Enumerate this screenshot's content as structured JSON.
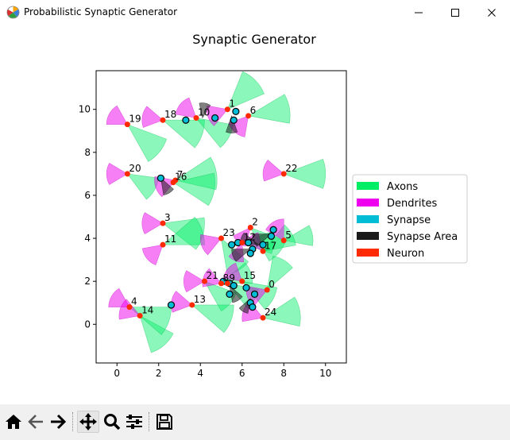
{
  "window": {
    "title": "Probabilistic Synaptic Generator",
    "icon": "matplotlib-icon",
    "controls": [
      "minimize-icon",
      "maximize-icon",
      "close-icon"
    ]
  },
  "toolbar": {
    "buttons": [
      {
        "name": "home",
        "icon": "home-icon"
      },
      {
        "name": "back",
        "icon": "back-arrow-icon"
      },
      {
        "name": "forward",
        "icon": "forward-arrow-icon"
      },
      {
        "name": "pan",
        "icon": "move-icon",
        "active": true
      },
      {
        "name": "zoom",
        "icon": "zoom-icon"
      },
      {
        "name": "configure",
        "icon": "sliders-icon"
      },
      {
        "name": "save",
        "icon": "save-icon"
      }
    ]
  },
  "chart_data": {
    "type": "scatter",
    "title": "Synaptic Generator",
    "xlim": [
      -1,
      11
    ],
    "ylim": [
      -1.8,
      11.8
    ],
    "xticks": [
      0,
      2,
      4,
      6,
      8,
      10
    ],
    "yticks": [
      0,
      2,
      4,
      6,
      8,
      10
    ],
    "grid": false,
    "legend_position": "right",
    "legend": [
      {
        "label": "Axons",
        "color": "#00ee66"
      },
      {
        "label": "Dendrites",
        "color": "#ee00ee"
      },
      {
        "label": "Synapse",
        "color": "#00bcd4"
      },
      {
        "label": "Synapse Area",
        "color": "#1a1a1a"
      },
      {
        "label": "Neuron",
        "color": "#ff2a00"
      }
    ],
    "colors": {
      "axon": "#00ee66",
      "dendrite": "#ee00ee",
      "synapse": "#00bcd4",
      "synapse_area": "#1a1a1a",
      "neuron": "#ff2a00"
    },
    "neurons": [
      {
        "id": "0",
        "x": 7.2,
        "y": 1.6
      },
      {
        "id": "1",
        "x": 5.3,
        "y": 10.0
      },
      {
        "id": "2",
        "x": 6.4,
        "y": 4.5
      },
      {
        "id": "3",
        "x": 2.2,
        "y": 4.7
      },
      {
        "id": "4",
        "x": 0.6,
        "y": 0.8
      },
      {
        "id": "5",
        "x": 8.0,
        "y": 3.9
      },
      {
        "id": "6",
        "x": 6.3,
        "y": 9.7
      },
      {
        "id": "7",
        "x": 2.8,
        "y": 6.7
      },
      {
        "id": "8",
        "x": 5.0,
        "y": 1.9
      },
      {
        "id": "9",
        "x": 5.3,
        "y": 1.9
      },
      {
        "id": "10",
        "x": 3.8,
        "y": 9.6
      },
      {
        "id": "11",
        "x": 2.2,
        "y": 3.7
      },
      {
        "id": "12",
        "x": 6.0,
        "y": 3.8
      },
      {
        "id": "13",
        "x": 3.6,
        "y": 0.9
      },
      {
        "id": "14",
        "x": 1.1,
        "y": 0.4
      },
      {
        "id": "15",
        "x": 6.0,
        "y": 2.0
      },
      {
        "id": "16",
        "x": 2.7,
        "y": 6.6
      },
      {
        "id": "17",
        "x": 7.0,
        "y": 3.4
      },
      {
        "id": "18",
        "x": 2.2,
        "y": 9.5
      },
      {
        "id": "19",
        "x": 0.5,
        "y": 9.3
      },
      {
        "id": "20",
        "x": 0.5,
        "y": 7.0
      },
      {
        "id": "21",
        "x": 4.2,
        "y": 2.0
      },
      {
        "id": "22",
        "x": 8.0,
        "y": 7.0
      },
      {
        "id": "23",
        "x": 5.0,
        "y": 4.0
      },
      {
        "id": "24",
        "x": 7.0,
        "y": 0.3
      }
    ],
    "synapses": [
      {
        "x": 3.3,
        "y": 9.5
      },
      {
        "x": 4.7,
        "y": 9.6
      },
      {
        "x": 5.7,
        "y": 9.9
      },
      {
        "x": 5.6,
        "y": 9.5
      },
      {
        "x": 2.1,
        "y": 6.8
      },
      {
        "x": 5.5,
        "y": 3.7
      },
      {
        "x": 5.8,
        "y": 3.8
      },
      {
        "x": 6.3,
        "y": 3.8
      },
      {
        "x": 6.5,
        "y": 3.5
      },
      {
        "x": 6.4,
        "y": 3.3
      },
      {
        "x": 7.0,
        "y": 3.7
      },
      {
        "x": 7.5,
        "y": 4.4
      },
      {
        "x": 7.4,
        "y": 4.1
      },
      {
        "x": 5.1,
        "y": 2.0
      },
      {
        "x": 5.4,
        "y": 1.9
      },
      {
        "x": 5.6,
        "y": 1.8
      },
      {
        "x": 5.4,
        "y": 1.4
      },
      {
        "x": 6.2,
        "y": 1.7
      },
      {
        "x": 6.6,
        "y": 1.4
      },
      {
        "x": 6.4,
        "y": 1.0
      },
      {
        "x": 6.5,
        "y": 0.8
      },
      {
        "x": 2.6,
        "y": 0.9
      }
    ],
    "synapse_areas": [
      {
        "x": 4.1,
        "y": 9.6,
        "angle": 80,
        "span": 45,
        "r": 0.7
      },
      {
        "x": 5.5,
        "y": 9.7,
        "angle": 270,
        "span": 40,
        "r": 0.8
      },
      {
        "x": 2.1,
        "y": 6.8,
        "angle": 300,
        "span": 40,
        "r": 0.8
      },
      {
        "x": 6.4,
        "y": 3.5,
        "angle": 200,
        "span": 40,
        "r": 0.9
      },
      {
        "x": 6.8,
        "y": 3.7,
        "angle": 160,
        "span": 35,
        "r": 0.9
      },
      {
        "x": 7.4,
        "y": 4.2,
        "angle": 200,
        "span": 40,
        "r": 0.9
      },
      {
        "x": 5.4,
        "y": 1.8,
        "angle": 300,
        "span": 40,
        "r": 0.8
      },
      {
        "x": 6.4,
        "y": 1.2,
        "angle": 240,
        "span": 40,
        "r": 0.7
      }
    ],
    "axons": [
      {
        "x": 0.5,
        "y": 9.3,
        "angle": 320,
        "span": 40,
        "r": 2.0
      },
      {
        "x": 2.2,
        "y": 9.5,
        "angle": 340,
        "span": 40,
        "r": 2.0
      },
      {
        "x": 3.8,
        "y": 9.6,
        "angle": 330,
        "span": 40,
        "r": 1.8
      },
      {
        "x": 5.3,
        "y": 10.0,
        "angle": 45,
        "span": 45,
        "r": 1.9
      },
      {
        "x": 6.3,
        "y": 9.7,
        "angle": 10,
        "span": 40,
        "r": 2.0
      },
      {
        "x": 0.5,
        "y": 7.0,
        "angle": 330,
        "span": 45,
        "r": 1.5
      },
      {
        "x": 2.8,
        "y": 6.7,
        "angle": 10,
        "span": 45,
        "r": 2.0
      },
      {
        "x": 2.7,
        "y": 6.6,
        "angle": 350,
        "span": 45,
        "r": 2.0
      },
      {
        "x": 8.0,
        "y": 7.0,
        "angle": 0,
        "span": 40,
        "r": 2.0
      },
      {
        "x": 2.2,
        "y": 4.7,
        "angle": 345,
        "span": 45,
        "r": 2.0
      },
      {
        "x": 2.2,
        "y": 3.7,
        "angle": 20,
        "span": 40,
        "r": 2.0
      },
      {
        "x": 5.0,
        "y": 4.0,
        "angle": 300,
        "span": 40,
        "r": 1.7
      },
      {
        "x": 6.4,
        "y": 4.5,
        "angle": 320,
        "span": 40,
        "r": 1.8
      },
      {
        "x": 6.0,
        "y": 3.8,
        "angle": 0,
        "span": 40,
        "r": 1.5
      },
      {
        "x": 8.0,
        "y": 3.9,
        "angle": 10,
        "span": 40,
        "r": 1.4
      },
      {
        "x": 7.0,
        "y": 3.4,
        "angle": 30,
        "span": 40,
        "r": 1.6
      },
      {
        "x": 5.0,
        "y": 1.9,
        "angle": 20,
        "span": 40,
        "r": 1.5
      },
      {
        "x": 5.3,
        "y": 1.9,
        "angle": 330,
        "span": 40,
        "r": 1.5
      },
      {
        "x": 6.0,
        "y": 2.0,
        "angle": 330,
        "span": 40,
        "r": 1.7
      },
      {
        "x": 7.2,
        "y": 1.6,
        "angle": 60,
        "span": 40,
        "r": 1.6
      },
      {
        "x": 4.2,
        "y": 2.0,
        "angle": 320,
        "span": 40,
        "r": 1.6
      },
      {
        "x": 3.6,
        "y": 0.9,
        "angle": 340,
        "span": 40,
        "r": 2.0
      },
      {
        "x": 1.1,
        "y": 0.4,
        "angle": 310,
        "span": 45,
        "r": 1.8
      },
      {
        "x": 0.6,
        "y": 0.8,
        "angle": 340,
        "span": 40,
        "r": 2.0
      },
      {
        "x": 7.0,
        "y": 0.3,
        "angle": 10,
        "span": 45,
        "r": 1.8
      }
    ],
    "dendrites": [
      {
        "x": 0.5,
        "y": 9.3,
        "angle": 150,
        "span": 60,
        "r": 1.0
      },
      {
        "x": 2.2,
        "y": 9.5,
        "angle": 170,
        "span": 60,
        "r": 1.0
      },
      {
        "x": 3.8,
        "y": 9.6,
        "angle": 140,
        "span": 60,
        "r": 1.0
      },
      {
        "x": 5.3,
        "y": 10.0,
        "angle": 200,
        "span": 60,
        "r": 1.0
      },
      {
        "x": 6.3,
        "y": 9.7,
        "angle": 230,
        "span": 60,
        "r": 1.0
      },
      {
        "x": 0.5,
        "y": 7.0,
        "angle": 180,
        "span": 60,
        "r": 1.0
      },
      {
        "x": 2.8,
        "y": 6.7,
        "angle": 200,
        "span": 60,
        "r": 1.0
      },
      {
        "x": 8.0,
        "y": 7.0,
        "angle": 170,
        "span": 60,
        "r": 1.0
      },
      {
        "x": 2.2,
        "y": 4.7,
        "angle": 180,
        "span": 60,
        "r": 1.0
      },
      {
        "x": 2.2,
        "y": 3.7,
        "angle": 220,
        "span": 60,
        "r": 1.0
      },
      {
        "x": 5.0,
        "y": 4.0,
        "angle": 200,
        "span": 60,
        "r": 1.0
      },
      {
        "x": 6.4,
        "y": 4.5,
        "angle": 230,
        "span": 50,
        "r": 0.9
      },
      {
        "x": 6.0,
        "y": 3.8,
        "angle": 250,
        "span": 50,
        "r": 0.9
      },
      {
        "x": 7.0,
        "y": 3.4,
        "angle": 130,
        "span": 50,
        "r": 0.9
      },
      {
        "x": 8.0,
        "y": 3.9,
        "angle": 120,
        "span": 60,
        "r": 1.0
      },
      {
        "x": 4.2,
        "y": 2.0,
        "angle": 180,
        "span": 60,
        "r": 1.0
      },
      {
        "x": 5.0,
        "y": 1.9,
        "angle": 160,
        "span": 60,
        "r": 0.9
      },
      {
        "x": 6.0,
        "y": 2.0,
        "angle": 140,
        "span": 60,
        "r": 0.9
      },
      {
        "x": 7.2,
        "y": 1.6,
        "angle": 200,
        "span": 60,
        "r": 1.0
      },
      {
        "x": 3.6,
        "y": 0.9,
        "angle": 170,
        "span": 60,
        "r": 1.0
      },
      {
        "x": 1.1,
        "y": 0.4,
        "angle": 160,
        "span": 60,
        "r": 1.0
      },
      {
        "x": 0.6,
        "y": 0.8,
        "angle": 150,
        "span": 60,
        "r": 1.0
      },
      {
        "x": 7.0,
        "y": 0.3,
        "angle": 160,
        "span": 60,
        "r": 1.0
      }
    ]
  }
}
